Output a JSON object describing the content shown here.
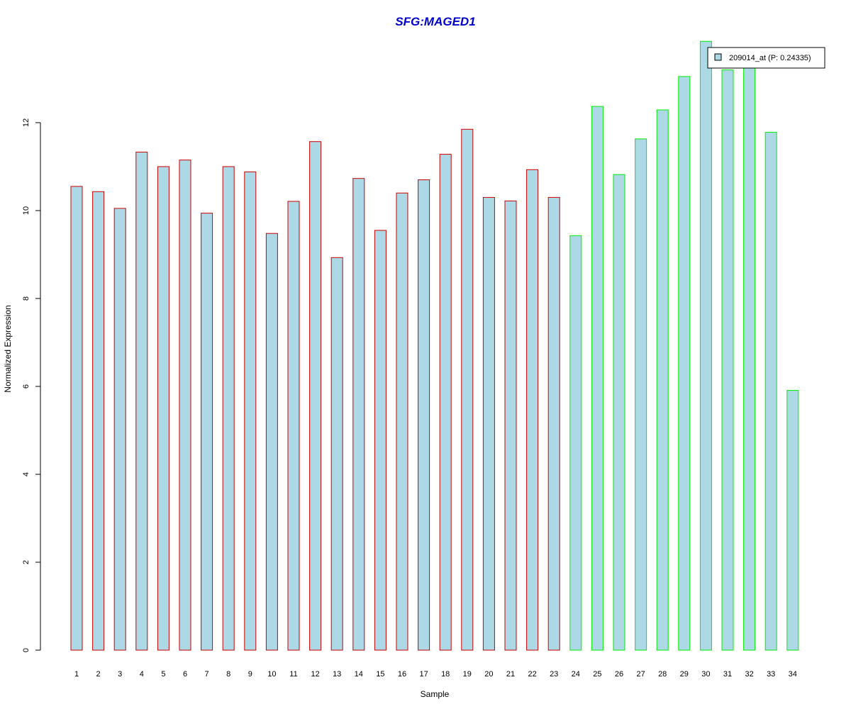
{
  "chart_data": {
    "type": "bar",
    "title": "SFG:MAGED1",
    "xlabel": "Sample",
    "ylabel": "Normalized Expression",
    "categories": [
      "1",
      "2",
      "3",
      "4",
      "5",
      "6",
      "7",
      "8",
      "9",
      "10",
      "11",
      "12",
      "13",
      "14",
      "15",
      "16",
      "17",
      "18",
      "19",
      "20",
      "21",
      "22",
      "23",
      "24",
      "25",
      "26",
      "27",
      "28",
      "29",
      "30",
      "31",
      "32",
      "33",
      "34"
    ],
    "series": [
      {
        "name": "209014_at (P: 0.24335)",
        "values": [
          10.55,
          10.43,
          10.05,
          11.33,
          11.0,
          11.15,
          9.94,
          11.0,
          10.88,
          9.48,
          10.21,
          11.57,
          8.93,
          10.73,
          9.55,
          10.4,
          10.7,
          11.28,
          11.85,
          10.3,
          10.22,
          10.93,
          10.3,
          9.43,
          12.37,
          10.82,
          11.63,
          12.29,
          13.05,
          13.85,
          13.2,
          13.25,
          11.78,
          5.91
        ]
      }
    ],
    "groups": [
      {
        "samples_from": 1,
        "samples_to": 23,
        "border_color": "#cc0000"
      },
      {
        "samples_from": 24,
        "samples_to": 34,
        "border_color": "#00ee00"
      }
    ],
    "yticks": [
      0,
      2,
      4,
      6,
      8,
      10,
      12
    ],
    "ylim": [
      0,
      13.85
    ],
    "grid": false,
    "legend": "top-right",
    "colors": {
      "bar_fill": "#add8e6",
      "title": "#0000cc",
      "axis": "#000000",
      "legend_border": "#000000"
    }
  }
}
